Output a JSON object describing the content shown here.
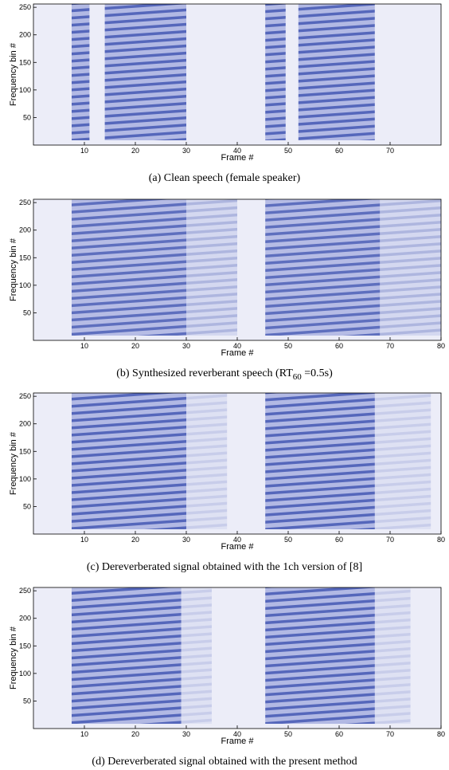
{
  "chart_data": [
    {
      "type": "spectrogram",
      "xlabel": "Frame #",
      "ylabel": "Frequency bin #",
      "caption": {
        "main": "(a) Clean speech (female speaker)"
      },
      "xlim": [
        0,
        80
      ],
      "xticks": [
        10,
        20,
        30,
        40,
        50,
        60,
        70
      ],
      "ylim": [
        0,
        256
      ],
      "yticks": [
        50,
        100,
        150,
        200,
        250
      ],
      "color": "#3a4fb0",
      "segments": [
        {
          "start": 7.5,
          "end": 11,
          "level": 0.85
        },
        {
          "start": 14,
          "end": 30,
          "level": 0.85
        },
        {
          "start": 45.5,
          "end": 49.5,
          "level": 0.85
        },
        {
          "start": 52,
          "end": 67,
          "level": 0.85
        }
      ]
    },
    {
      "type": "spectrogram",
      "xlabel": "Frame #",
      "ylabel": "Frequency bin #",
      "caption": {
        "main": "(b) Synthesized reverberant speech (RT",
        "sub": "60",
        "tail": " =0.5s)"
      },
      "xlim": [
        0,
        80
      ],
      "xticks": [
        10,
        20,
        30,
        40,
        50,
        60,
        70,
        80
      ],
      "ylim": [
        0,
        256
      ],
      "yticks": [
        50,
        100,
        150,
        200,
        250
      ],
      "color": "#3a4fb0",
      "segments": [
        {
          "start": 7.5,
          "end": 30,
          "level": 0.8
        },
        {
          "start": 30,
          "end": 40,
          "level": 0.35
        },
        {
          "start": 45.5,
          "end": 68,
          "level": 0.8
        },
        {
          "start": 68,
          "end": 80,
          "level": 0.35
        }
      ]
    },
    {
      "type": "spectrogram",
      "xlabel": "Frame #",
      "ylabel": "Frequency bin #",
      "caption": {
        "main": "(c) Dereverberated signal obtained with the 1ch version of [8]"
      },
      "xlim": [
        0,
        80
      ],
      "xticks": [
        10,
        20,
        30,
        40,
        50,
        60,
        70,
        80
      ],
      "ylim": [
        0,
        256
      ],
      "yticks": [
        50,
        100,
        150,
        200,
        250
      ],
      "color": "#3a4fb0",
      "segments": [
        {
          "start": 7.5,
          "end": 30,
          "level": 0.85
        },
        {
          "start": 30,
          "end": 38,
          "level": 0.2
        },
        {
          "start": 45.5,
          "end": 67,
          "level": 0.85
        },
        {
          "start": 67,
          "end": 78,
          "level": 0.2
        }
      ]
    },
    {
      "type": "spectrogram",
      "xlabel": "Frame #",
      "ylabel": "Frequency bin #",
      "caption": {
        "main": "(d) Dereverberated signal obtained with the present method"
      },
      "xlim": [
        0,
        80
      ],
      "xticks": [
        10,
        20,
        30,
        40,
        50,
        60,
        70,
        80
      ],
      "ylim": [
        0,
        256
      ],
      "yticks": [
        50,
        100,
        150,
        200,
        250
      ],
      "color": "#3a4fb0",
      "segments": [
        {
          "start": 7.5,
          "end": 29,
          "level": 0.85
        },
        {
          "start": 29,
          "end": 35,
          "level": 0.2
        },
        {
          "start": 45.5,
          "end": 67,
          "level": 0.85
        },
        {
          "start": 67,
          "end": 74,
          "level": 0.2
        }
      ]
    }
  ]
}
